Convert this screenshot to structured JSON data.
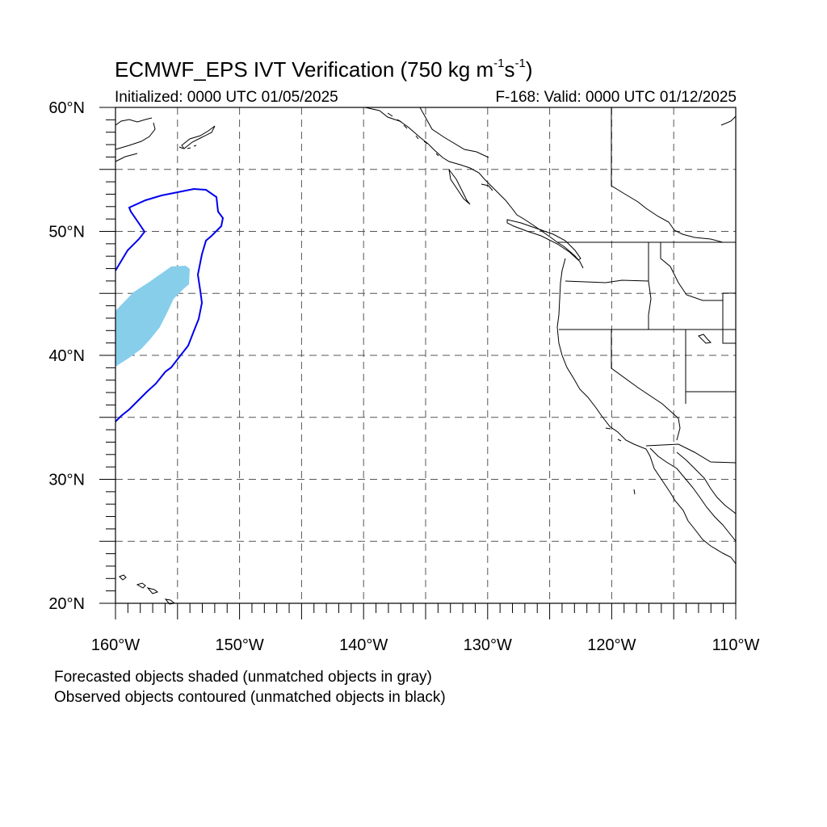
{
  "title": {
    "prefix": "ECMWF_EPS IVT Verification (750 kg m",
    "sup1": "-1",
    "mid": "s",
    "sup2": "-1",
    "suffix": ")"
  },
  "initialized": "Initialized: 0000 UTC 01/05/2025",
  "valid": "F-168: Valid: 0000 UTC 01/12/2025",
  "notes": {
    "line1": "Forecasted objects shaded (unmatched objects in gray)",
    "line2": "Observed objects contoured (unmatched objects in black)"
  },
  "map": {
    "projection": "cylindrical equidistant",
    "lon_range": [
      -160,
      -110
    ],
    "lat_range": [
      20,
      60
    ],
    "lat_labels": [
      "20°N",
      "30°N",
      "40°N",
      "50°N",
      "60°N"
    ],
    "lon_labels": [
      "160°W",
      "150°W",
      "140°W",
      "130°W",
      "120°W",
      "110°W"
    ],
    "forecast_color": "#87ceeb",
    "observed_color": "#0000ee",
    "gridline_style": "dashed"
  }
}
